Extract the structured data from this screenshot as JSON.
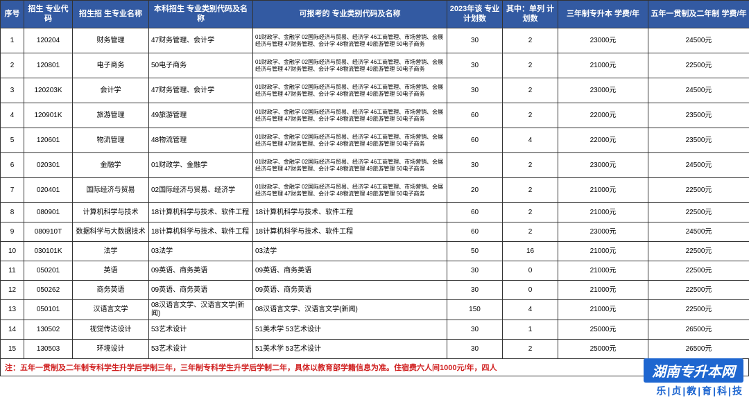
{
  "headers": {
    "c1": "序号",
    "c2": "招生\n专业代码",
    "c3": "招生招\n生专业名称",
    "c4": "本科招生\n专业类别代码及名称",
    "c5": "可报考的\n专业类别代码及名称",
    "c6": "2023年该\n专业计划数",
    "c7": "其中：单列\n计划数",
    "c8": "三年制专升本\n学费/年",
    "c9": "五年一贯制及二年制\n学费/年"
  },
  "multi_text": "01财政学、金融学 02国际经济与贸易、经济学 46工商管理、市场营销、会展经济与管理\n47财务管理、会计学\n48物流管理 49旅游管理 50电子商务",
  "rows": [
    {
      "n": "1",
      "code": "120204",
      "name": "财务管理",
      "cat": "47财务管理、会计学",
      "exam": "multi",
      "plan": "30",
      "single": "2",
      "fee3": "23000元",
      "fee5": "24500元",
      "tall": true
    },
    {
      "n": "2",
      "code": "120801",
      "name": "电子商务",
      "cat": "50电子商务",
      "exam": "multi",
      "plan": "30",
      "single": "2",
      "fee3": "21000元",
      "fee5": "22500元",
      "tall": true
    },
    {
      "n": "3",
      "code": "120203K",
      "name": "会计学",
      "cat": "47财务管理、会计学",
      "exam": "multi",
      "plan": "30",
      "single": "2",
      "fee3": "23000元",
      "fee5": "24500元",
      "tall": true
    },
    {
      "n": "4",
      "code": "120901K",
      "name": "旅游管理",
      "cat": "49旅游管理",
      "exam": "multi",
      "plan": "60",
      "single": "2",
      "fee3": "22000元",
      "fee5": "23500元",
      "tall": true
    },
    {
      "n": "5",
      "code": "120601",
      "name": "物流管理",
      "cat": "48物流管理",
      "exam": "multi",
      "plan": "60",
      "single": "4",
      "fee3": "22000元",
      "fee5": "23500元",
      "tall": true
    },
    {
      "n": "6",
      "code": "020301",
      "name": "金融学",
      "cat": "01财政学、金融学",
      "exam": "multi",
      "plan": "30",
      "single": "2",
      "fee3": "23000元",
      "fee5": "24500元",
      "tall": true
    },
    {
      "n": "7",
      "code": "020401",
      "name": "国际经济与贸易",
      "cat": "02国际经济与贸易、经济学",
      "exam": "multi",
      "plan": "20",
      "single": "2",
      "fee3": "21000元",
      "fee5": "22500元",
      "tall": true
    },
    {
      "n": "8",
      "code": "080901",
      "name": "计算机科学与技术",
      "cat": "18计算机科学与技术、软件工程",
      "exam": "18计算机科学与技术、软件工程",
      "plan": "60",
      "single": "2",
      "fee3": "21000元",
      "fee5": "22500元"
    },
    {
      "n": "9",
      "code": "080910T",
      "name": "数据科学与大数据技术",
      "cat": "18计算机科学与技术、软件工程",
      "exam": "18计算机科学与技术、软件工程",
      "plan": "60",
      "single": "2",
      "fee3": "23000元",
      "fee5": "24500元"
    },
    {
      "n": "10",
      "code": "030101K",
      "name": "法学",
      "cat": "03法学",
      "exam": "03法学",
      "plan": "50",
      "single": "16",
      "fee3": "21000元",
      "fee5": "22500元"
    },
    {
      "n": "11",
      "code": "050201",
      "name": "英语",
      "cat": "09英语、商务英语",
      "exam": "09英语、商务英语",
      "plan": "30",
      "single": "0",
      "fee3": "21000元",
      "fee5": "22500元"
    },
    {
      "n": "12",
      "code": "050262",
      "name": "商务英语",
      "cat": "09英语、商务英语",
      "exam": "09英语、商务英语",
      "plan": "30",
      "single": "0",
      "fee3": "21000元",
      "fee5": "22500元"
    },
    {
      "n": "13",
      "code": "050101",
      "name": "汉语言文学",
      "cat": "08汉语言文学、汉语言文学(新闻)",
      "exam": "08汉语言文学、汉语言文学(新闻)",
      "plan": "150",
      "single": "4",
      "fee3": "21000元",
      "fee5": "22500元"
    },
    {
      "n": "14",
      "code": "130502",
      "name": "视觉传达设计",
      "cat": "53艺术设计",
      "exam": "51美术学 53艺术设计",
      "plan": "30",
      "single": "1",
      "fee3": "25000元",
      "fee5": "26500元"
    },
    {
      "n": "15",
      "code": "130503",
      "name": "环境设计",
      "cat": "53艺术设计",
      "exam": "51美术学 53艺术设计",
      "plan": "30",
      "single": "2",
      "fee3": "25000元",
      "fee5": "26500元"
    }
  ],
  "footnote": "注：五年一贯制及二年制专科学生升学后学制三年，三年制专科学生升学后学制二年，具体以教育部学籍信息为准。住宿费六人间1000元/年，四人",
  "watermark": {
    "top": "湖南专升本网",
    "bottom": "乐|贞|教|育|科|技"
  },
  "colors": {
    "header_bg": "#335aa2",
    "header_text": "#ffffff",
    "border": "#333333",
    "footnote_text": "#d02020",
    "wm_bg": "#1e66d0",
    "wm_text": "#ffffff"
  }
}
